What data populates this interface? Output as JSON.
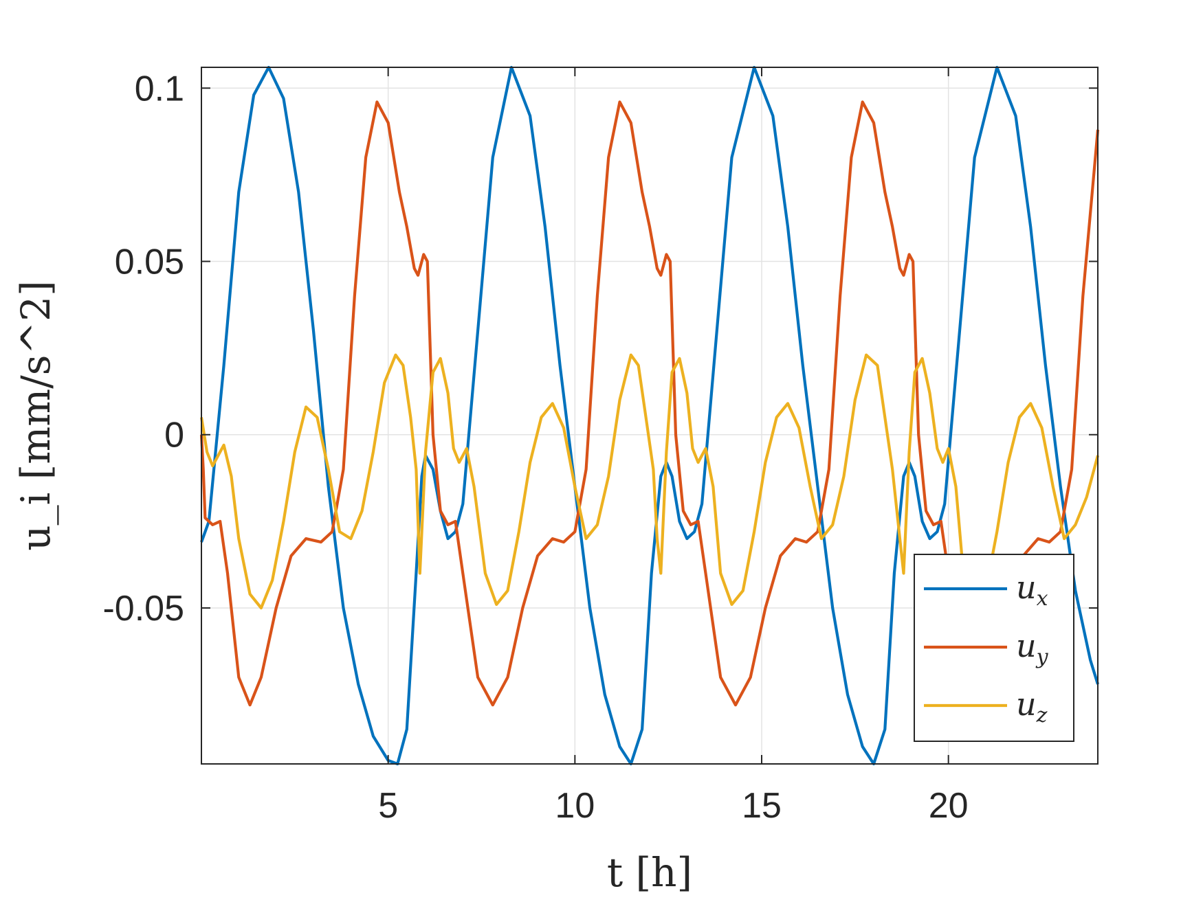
{
  "chart_data": {
    "type": "line",
    "xlabel": "t [h]",
    "ylabel": "u_i [mm/s^2]",
    "xlim": [
      0,
      24
    ],
    "ylim": [
      -0.095,
      0.106
    ],
    "xticks": [
      5,
      10,
      15,
      20
    ],
    "xtick_labels": [
      "5",
      "10",
      "15",
      "20"
    ],
    "yticks": [
      -0.05,
      0,
      0.05,
      0.1
    ],
    "ytick_labels": [
      "-0.05",
      "0",
      "0.05",
      "0.1"
    ],
    "grid": true,
    "legend_position": "bottom-right",
    "series": [
      {
        "name": "u_x",
        "legend_base": "u",
        "legend_sub": "x",
        "color": "#0072BD",
        "x": [
          0,
          0.2,
          0.6,
          1.0,
          1.4,
          1.8,
          2.2,
          2.6,
          3.0,
          3.4,
          3.8,
          4.2,
          4.6,
          5.0,
          5.25,
          5.5,
          5.75,
          5.9,
          6.0,
          6.2,
          6.4,
          6.6,
          6.8,
          7.0,
          7.4,
          7.8,
          8.3,
          8.8,
          9.2,
          9.6,
          10.0,
          10.4,
          10.8,
          11.2,
          11.5,
          11.8,
          12.05,
          12.3,
          12.45,
          12.6,
          12.8,
          13.0,
          13.2,
          13.4,
          13.8,
          14.2,
          14.8,
          15.3,
          15.7,
          16.1,
          16.5,
          16.9,
          17.3,
          17.7,
          18.0,
          18.3,
          18.55,
          18.8,
          18.95,
          19.1,
          19.3,
          19.5,
          19.7,
          19.9,
          20.3,
          20.7,
          21.3,
          21.8,
          22.2,
          22.6,
          23.0,
          23.4,
          23.8,
          24.0
        ],
        "y": [
          -0.031,
          -0.025,
          0.02,
          0.07,
          0.098,
          0.106,
          0.097,
          0.07,
          0.03,
          -0.015,
          -0.05,
          -0.072,
          -0.087,
          -0.094,
          -0.095,
          -0.085,
          -0.04,
          -0.012,
          -0.006,
          -0.01,
          -0.022,
          -0.03,
          -0.028,
          -0.02,
          0.03,
          0.08,
          0.106,
          0.092,
          0.06,
          0.02,
          -0.015,
          -0.05,
          -0.075,
          -0.09,
          -0.095,
          -0.085,
          -0.04,
          -0.012,
          -0.008,
          -0.012,
          -0.025,
          -0.03,
          -0.028,
          -0.02,
          0.03,
          0.08,
          0.106,
          0.092,
          0.06,
          0.02,
          -0.015,
          -0.05,
          -0.075,
          -0.09,
          -0.095,
          -0.085,
          -0.04,
          -0.012,
          -0.008,
          -0.012,
          -0.025,
          -0.03,
          -0.028,
          -0.02,
          0.03,
          0.08,
          0.106,
          0.092,
          0.06,
          0.02,
          -0.015,
          -0.045,
          -0.065,
          -0.072
        ]
      },
      {
        "name": "u_y",
        "legend_base": "u",
        "legend_sub": "y",
        "color": "#D95319",
        "x": [
          0,
          0.05,
          0.1,
          0.3,
          0.5,
          0.7,
          1.0,
          1.3,
          1.6,
          2.0,
          2.4,
          2.8,
          3.2,
          3.5,
          3.8,
          4.1,
          4.4,
          4.7,
          5.0,
          5.3,
          5.5,
          5.7,
          5.8,
          5.95,
          6.05,
          6.2,
          6.4,
          6.6,
          6.8,
          7.0,
          7.4,
          7.8,
          8.2,
          8.6,
          9.0,
          9.4,
          9.7,
          10.0,
          10.3,
          10.6,
          10.9,
          11.2,
          11.5,
          11.8,
          12.0,
          12.2,
          12.3,
          12.45,
          12.55,
          12.7,
          12.9,
          13.1,
          13.3,
          13.5,
          13.9,
          14.3,
          14.7,
          15.1,
          15.5,
          15.9,
          16.2,
          16.5,
          16.8,
          17.1,
          17.4,
          17.7,
          18.0,
          18.3,
          18.5,
          18.7,
          18.8,
          18.95,
          19.05,
          19.2,
          19.4,
          19.6,
          19.8,
          20.0,
          20.4,
          20.8,
          21.2,
          21.6,
          22.0,
          22.4,
          22.7,
          23.0,
          23.3,
          23.6,
          24.0
        ],
        "y": [
          0.0,
          -0.01,
          -0.024,
          -0.026,
          -0.025,
          -0.04,
          -0.07,
          -0.078,
          -0.07,
          -0.05,
          -0.035,
          -0.03,
          -0.031,
          -0.028,
          -0.01,
          0.04,
          0.08,
          0.096,
          0.09,
          0.07,
          0.06,
          0.048,
          0.046,
          0.052,
          0.05,
          0.0,
          -0.022,
          -0.026,
          -0.025,
          -0.04,
          -0.07,
          -0.078,
          -0.07,
          -0.05,
          -0.035,
          -0.03,
          -0.031,
          -0.028,
          -0.01,
          0.04,
          0.08,
          0.096,
          0.09,
          0.07,
          0.06,
          0.048,
          0.046,
          0.052,
          0.05,
          0.0,
          -0.022,
          -0.026,
          -0.025,
          -0.04,
          -0.07,
          -0.078,
          -0.07,
          -0.05,
          -0.035,
          -0.03,
          -0.031,
          -0.028,
          -0.01,
          0.04,
          0.08,
          0.096,
          0.09,
          0.07,
          0.06,
          0.048,
          0.046,
          0.052,
          0.05,
          0.0,
          -0.022,
          -0.026,
          -0.025,
          -0.04,
          -0.07,
          -0.078,
          -0.07,
          -0.05,
          -0.035,
          -0.03,
          -0.031,
          -0.028,
          -0.01,
          0.04,
          0.088
        ]
      },
      {
        "name": "u_z",
        "legend_base": "u",
        "legend_sub": "z",
        "color": "#EDB120",
        "x": [
          0,
          0.15,
          0.3,
          0.45,
          0.6,
          0.8,
          1.0,
          1.3,
          1.6,
          1.9,
          2.2,
          2.5,
          2.8,
          3.1,
          3.4,
          3.7,
          4.0,
          4.3,
          4.6,
          4.9,
          5.2,
          5.4,
          5.6,
          5.75,
          5.85,
          6.0,
          6.2,
          6.4,
          6.6,
          6.75,
          6.9,
          7.1,
          7.3,
          7.6,
          7.9,
          8.2,
          8.5,
          8.8,
          9.1,
          9.4,
          9.7,
          10.0,
          10.3,
          10.6,
          10.9,
          11.2,
          11.5,
          11.7,
          11.9,
          12.1,
          12.2,
          12.3,
          12.45,
          12.6,
          12.8,
          13.0,
          13.15,
          13.3,
          13.5,
          13.7,
          13.9,
          14.2,
          14.5,
          14.8,
          15.1,
          15.4,
          15.7,
          16.0,
          16.3,
          16.6,
          16.9,
          17.2,
          17.5,
          17.8,
          18.1,
          18.3,
          18.5,
          18.7,
          18.8,
          18.95,
          19.1,
          19.3,
          19.5,
          19.7,
          19.85,
          20.0,
          20.2,
          20.4,
          20.7,
          21.0,
          21.3,
          21.6,
          21.9,
          22.2,
          22.5,
          22.8,
          23.1,
          23.4,
          23.7,
          24.0
        ],
        "y": [
          0.005,
          -0.005,
          -0.009,
          -0.006,
          -0.003,
          -0.012,
          -0.03,
          -0.046,
          -0.05,
          -0.042,
          -0.025,
          -0.005,
          0.008,
          0.005,
          -0.01,
          -0.028,
          -0.03,
          -0.022,
          -0.005,
          0.015,
          0.023,
          0.02,
          0.005,
          -0.01,
          -0.04,
          -0.005,
          0.018,
          0.022,
          0.012,
          -0.004,
          -0.008,
          -0.004,
          -0.015,
          -0.04,
          -0.049,
          -0.045,
          -0.028,
          -0.008,
          0.005,
          0.009,
          0.002,
          -0.015,
          -0.03,
          -0.026,
          -0.012,
          0.01,
          0.023,
          0.02,
          0.005,
          -0.01,
          -0.03,
          -0.04,
          -0.005,
          0.018,
          0.022,
          0.012,
          -0.004,
          -0.008,
          -0.004,
          -0.015,
          -0.04,
          -0.049,
          -0.045,
          -0.028,
          -0.008,
          0.005,
          0.009,
          0.002,
          -0.015,
          -0.03,
          -0.026,
          -0.012,
          0.01,
          0.023,
          0.02,
          0.005,
          -0.01,
          -0.03,
          -0.04,
          -0.005,
          0.018,
          0.022,
          0.012,
          -0.004,
          -0.008,
          -0.004,
          -0.015,
          -0.04,
          -0.049,
          -0.045,
          -0.028,
          -0.008,
          0.005,
          0.009,
          0.002,
          -0.015,
          -0.03,
          -0.026,
          -0.018,
          -0.006
        ]
      }
    ]
  }
}
